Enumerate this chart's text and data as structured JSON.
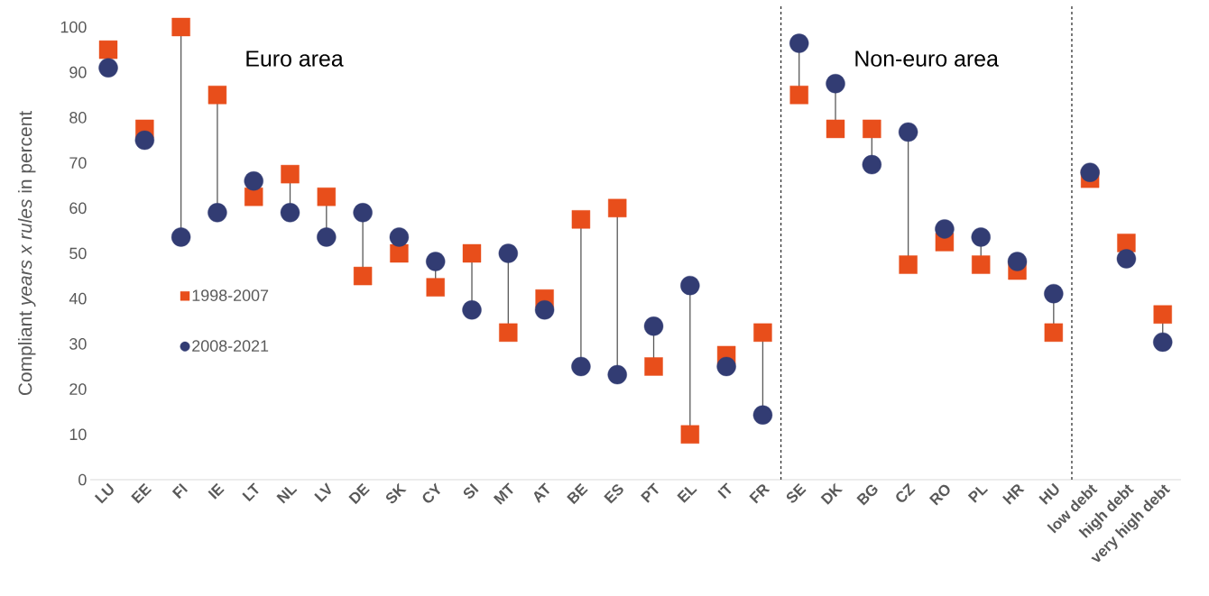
{
  "chart_data": {
    "type": "scatter",
    "ylabel": "Compliant *years x rules* in percent",
    "categories": [
      "LU",
      "EE",
      "FI",
      "IE",
      "LT",
      "NL",
      "LV",
      "DE",
      "SK",
      "CY",
      "SI",
      "MT",
      "AT",
      "BE",
      "ES",
      "PT",
      "EL",
      "IT",
      "FR",
      "SE",
      "DK",
      "BG",
      "CZ",
      "RO",
      "PL",
      "HR",
      "HU",
      "low debt",
      "high debt",
      "very high debt"
    ],
    "series": [
      {
        "name": "1998-2007",
        "color": "#e84e1b",
        "marker": "square",
        "values": [
          95,
          77.5,
          100,
          85,
          62.5,
          67.5,
          62.5,
          45,
          50,
          42.5,
          50,
          32.5,
          40,
          57.5,
          60,
          25,
          10,
          27.5,
          32.5,
          85,
          77.5,
          77.5,
          47.5,
          52.5,
          47.5,
          46.2,
          32.5,
          66.5,
          52.3,
          36.5
        ]
      },
      {
        "name": "2008-2021",
        "color": "#323c73",
        "marker": "circle",
        "values": [
          91,
          75,
          53.6,
          59,
          66,
          59,
          53.6,
          59,
          53.6,
          48.2,
          37.5,
          50,
          37.5,
          25,
          23.2,
          33.9,
          42.9,
          25,
          14.3,
          96.4,
          87.5,
          69.6,
          76.8,
          55.4,
          53.6,
          48.2,
          41.1,
          67.9,
          48.8,
          30.4
        ]
      }
    ],
    "ylim": [
      0,
      100
    ],
    "yticks": [
      0,
      10,
      20,
      30,
      40,
      50,
      60,
      70,
      80,
      90,
      100
    ],
    "grid": false,
    "legend": "left",
    "annotations": [
      "Euro area",
      "Non-euro area"
    ]
  }
}
